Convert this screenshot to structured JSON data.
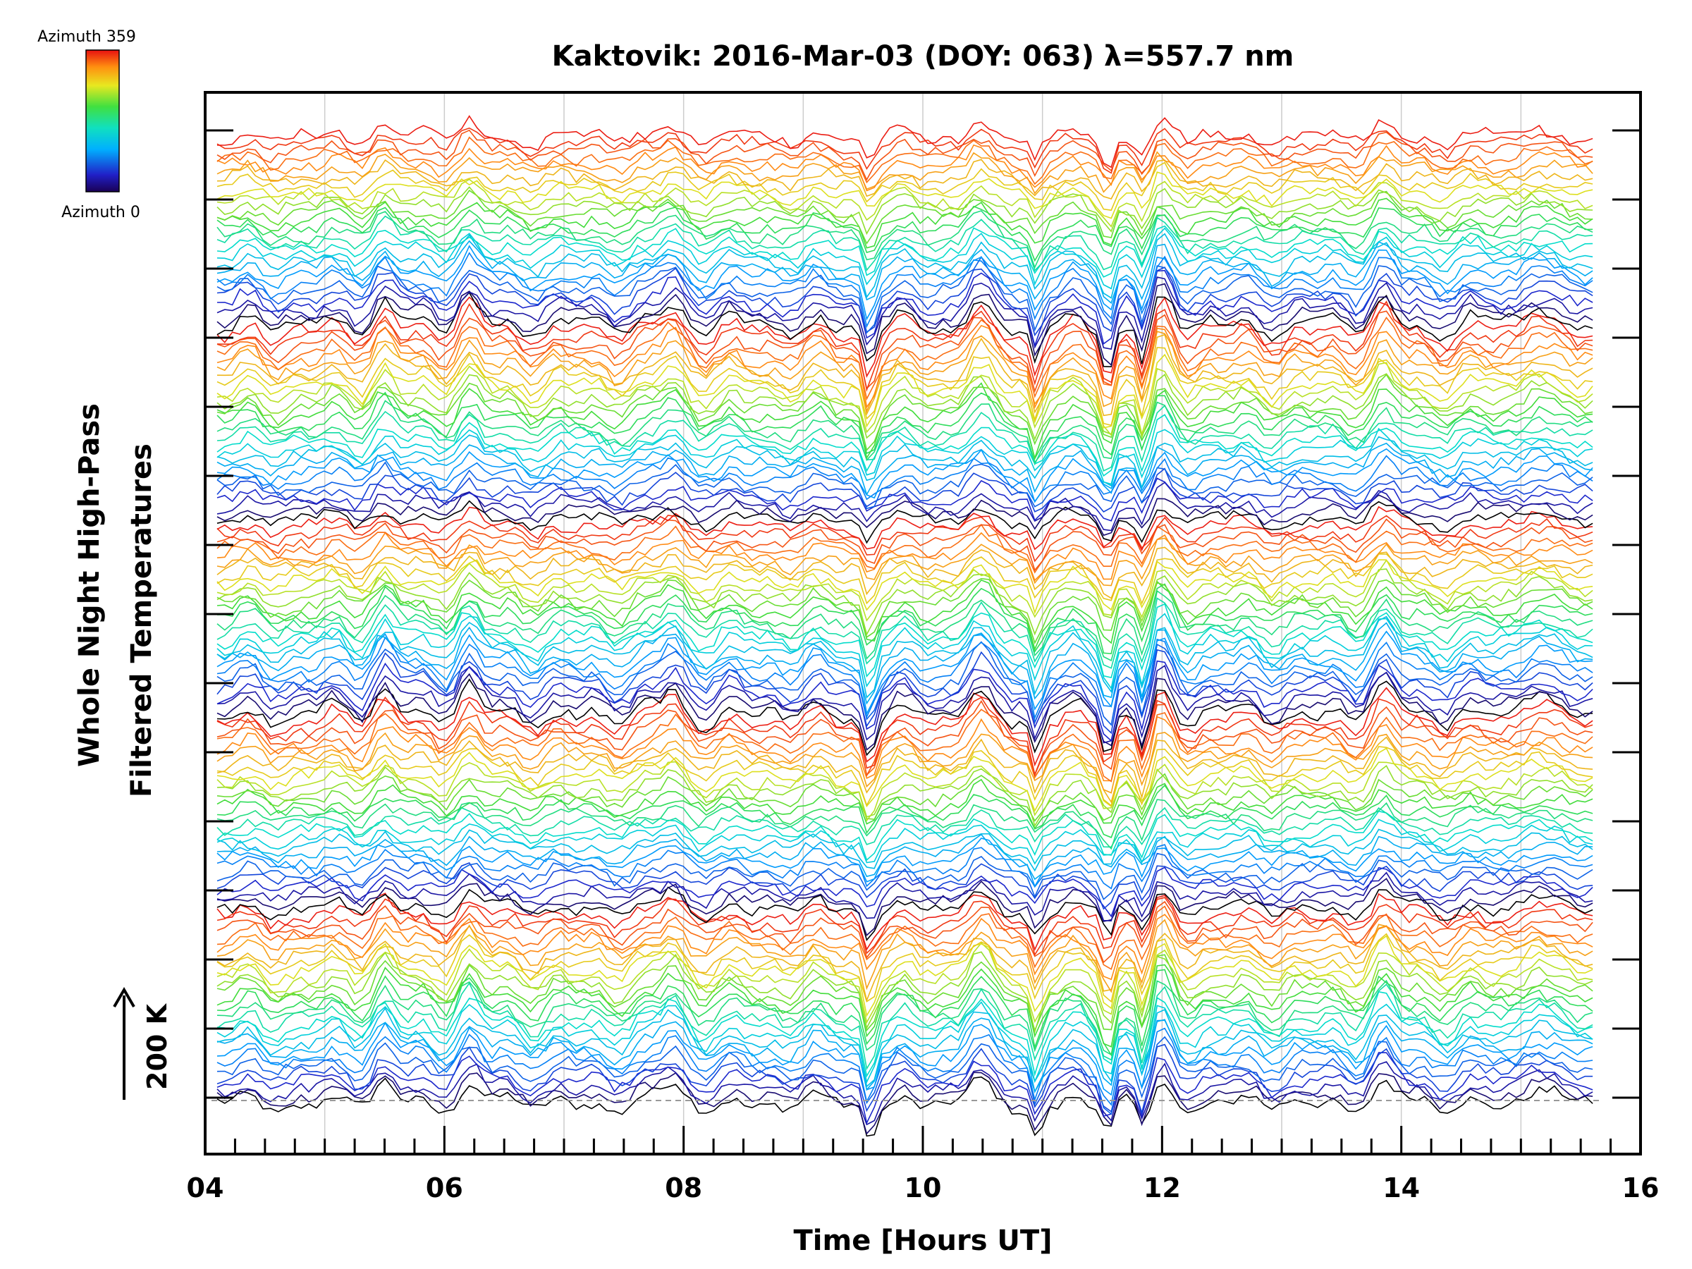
{
  "chart_data": {
    "type": "line",
    "title": "Kaktovik: 2016-Mar-03 (DOY: 063) λ=557.7 nm",
    "xlabel": "Time [Hours UT]",
    "ylabel_line1": "Whole Night High-Pass",
    "ylabel_line2": "Filtered Temperatures",
    "xlim": [
      4,
      16
    ],
    "x_ticks": [
      "04",
      "06",
      "08",
      "10",
      "12",
      "14",
      "16"
    ],
    "x_tick_values": [
      4,
      6,
      8,
      10,
      12,
      14,
      16
    ],
    "x_minor_step": 0.25,
    "y_major_tick_count": 15,
    "time_range": [
      4.1,
      15.6
    ],
    "grid": "vertical lines at each hour",
    "baseline": "dashed horizontal line at lowest trace",
    "scale_bar_label": "200 K",
    "colorbar": {
      "label_top": "Azimuth 359",
      "label_bottom": "Azimuth 0",
      "colormap": "rainbow (black-blue-cyan-green-yellow-red)"
    },
    "series_description": "Stacked high-pass filtered temperature traces, one per azimuth, colored by azimuth",
    "n_series": 140,
    "features": [
      {
        "time": 5.5,
        "type": "peak"
      },
      {
        "time": 6.2,
        "type": "peak"
      },
      {
        "time": 7.9,
        "type": "peak"
      },
      {
        "time": 9.55,
        "type": "dip"
      },
      {
        "time": 10.45,
        "type": "peak"
      },
      {
        "time": 10.95,
        "type": "dip"
      },
      {
        "time": 11.55,
        "type": "dip"
      },
      {
        "time": 11.85,
        "type": "dip"
      },
      {
        "time": 12.0,
        "type": "peak"
      },
      {
        "time": 13.85,
        "type": "peak"
      },
      {
        "time": 15.1,
        "type": "peak"
      }
    ],
    "colors": {
      "axes": "#000000",
      "grid": "#cccccc",
      "baseline": "#999999"
    }
  }
}
